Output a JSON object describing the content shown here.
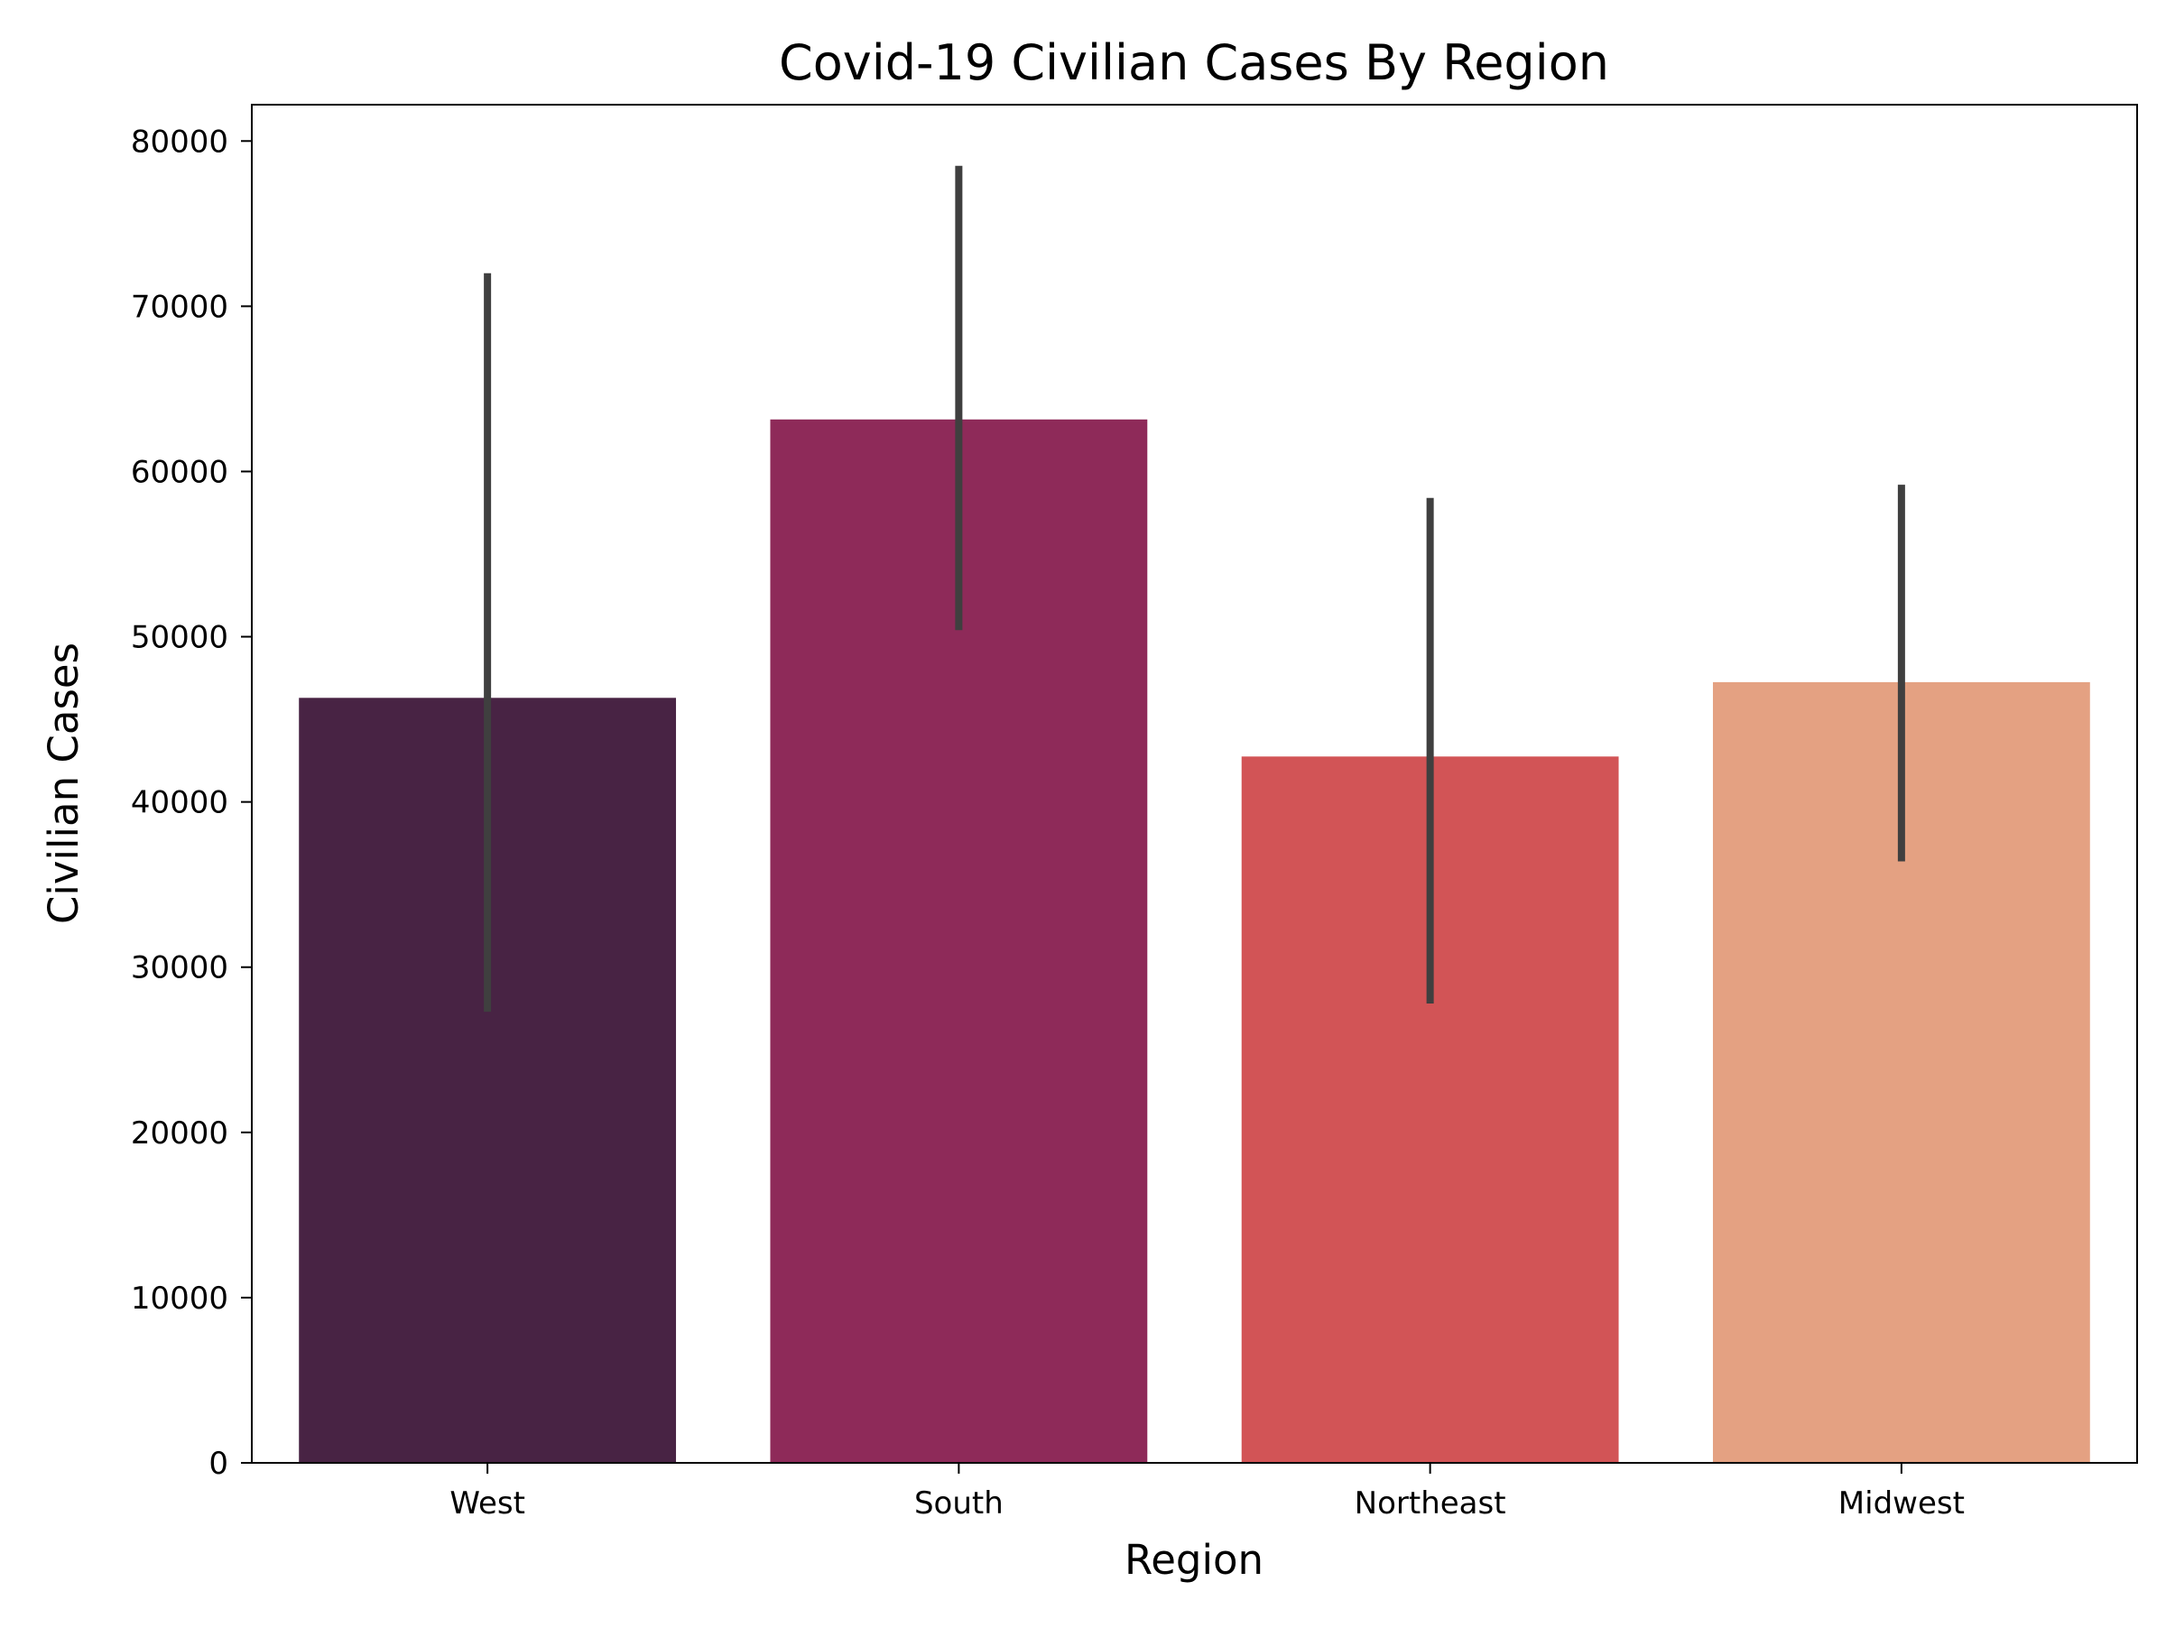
{
  "chart_data": {
    "type": "bar",
    "title": "Covid-19 Civilian Cases By Region",
    "xlabel": "Region",
    "ylabel": "Civilian Cases",
    "categories": [
      "West",
      "South",
      "Northeast",
      "Midwest"
    ],
    "values": [
      46300,
      63150,
      42750,
      47250
    ],
    "error_bars": [
      {
        "low": 27300,
        "high": 72000
      },
      {
        "low": 50400,
        "high": 78500
      },
      {
        "low": 27800,
        "high": 58400
      },
      {
        "low": 36400,
        "high": 59200
      }
    ],
    "colors": [
      "#482344",
      "#8e2a59",
      "#d25456",
      "#e4a182"
    ],
    "error_bar_color": "#3f3f3f",
    "ylim": [
      0,
      82200
    ],
    "yticks": [
      0,
      10000,
      20000,
      30000,
      40000,
      50000,
      60000,
      70000,
      80000
    ],
    "grid": false,
    "legend": "none"
  }
}
